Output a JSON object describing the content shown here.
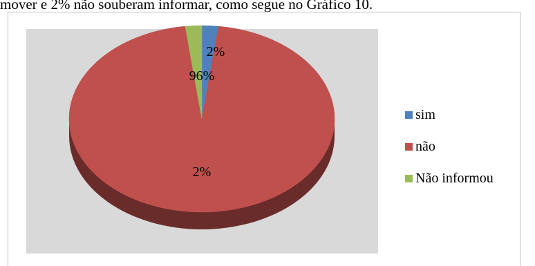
{
  "document": {
    "text_line": "mover e 2% não souberam informar, como segue no Gráfico 10."
  },
  "chart_data": {
    "type": "pie",
    "style": "3d",
    "categories": [
      "sim",
      "não",
      "Não informou"
    ],
    "values": [
      2,
      96,
      2
    ],
    "data_labels": [
      "2%",
      "96%",
      "2%"
    ],
    "colors": [
      "#4f81bd",
      "#c0504d",
      "#9bbb59"
    ],
    "title": "",
    "legend_position": "right"
  }
}
